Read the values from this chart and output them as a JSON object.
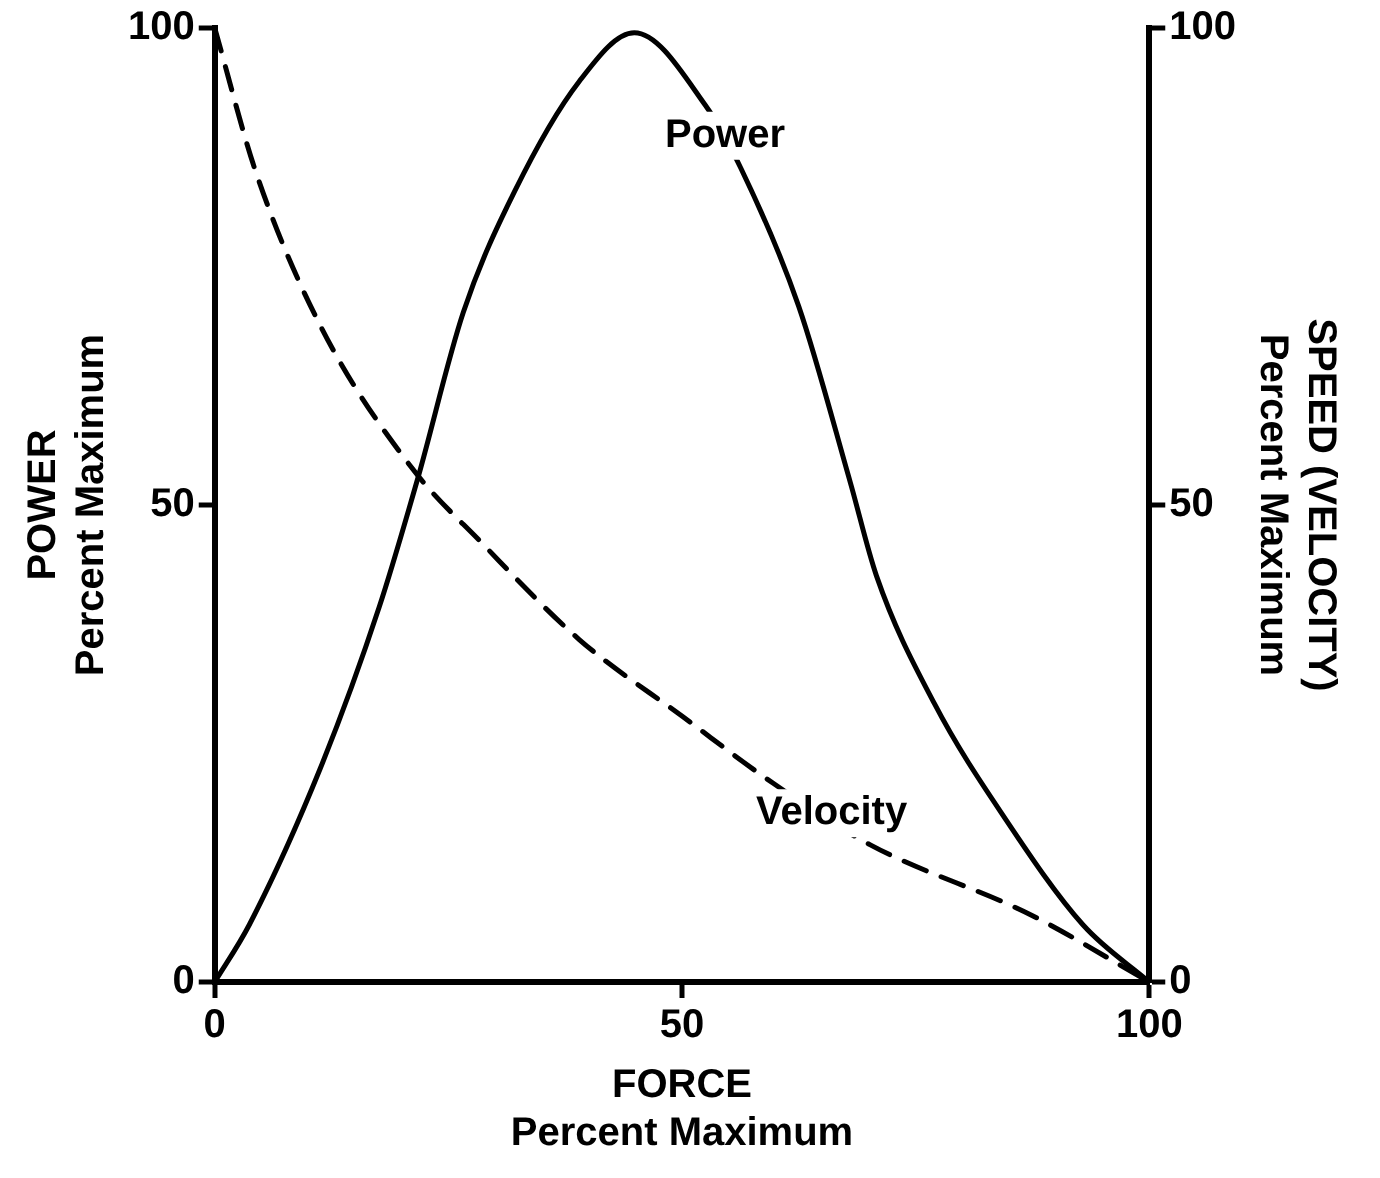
{
  "chart_data": {
    "type": "line",
    "xlabel": "FORCE\nPercent Maximum",
    "ylabel": "POWER\nPercent Maximum",
    "y2label": "SPEED (VELOCITY)\nPercent Maximum",
    "xlim": [
      0,
      100
    ],
    "xticks": [
      0,
      50,
      100
    ],
    "ylim": [
      0,
      100
    ],
    "yticks": [
      0,
      50,
      100
    ],
    "y2lim": [
      0,
      100
    ],
    "y2ticks": [
      0,
      50,
      100
    ],
    "grid": false,
    "legend": false,
    "marker": "none",
    "series": [
      {
        "color": "#000000",
        "line_style": "solid",
        "x": [
          0,
          3.7,
          11.3,
          17.6,
          21.7,
          26.6,
          32.1,
          39,
          44.9,
          52.5,
          56.3,
          62.5,
          68,
          70.8,
          77,
          84.6,
          92.9,
          100
        ],
        "values": [
          0,
          6,
          22.4,
          39.3,
          52.7,
          70.2,
          82.9,
          94.4,
          99.5,
          91.9,
          85.3,
          70.8,
          52.4,
          42.6,
          29.2,
          17.1,
          6,
          0
        ]
      },
      {
        "color": "#000000",
        "line_style": "dashed",
        "x": [
          0,
          4.4,
          11.3,
          21,
          28.6,
          39,
          50.1,
          59.8,
          70.1,
          87.4,
          100
        ],
        "values": [
          100,
          84.9,
          68.8,
          54,
          46,
          35.9,
          27.8,
          20.8,
          14.4,
          7,
          0
        ]
      }
    ],
    "annotations": [
      {
        "text": "Power",
        "x": 54.6,
        "y": 88.7
      },
      {
        "text": "Velocity",
        "x": 66,
        "y": 17.7
      }
    ]
  }
}
